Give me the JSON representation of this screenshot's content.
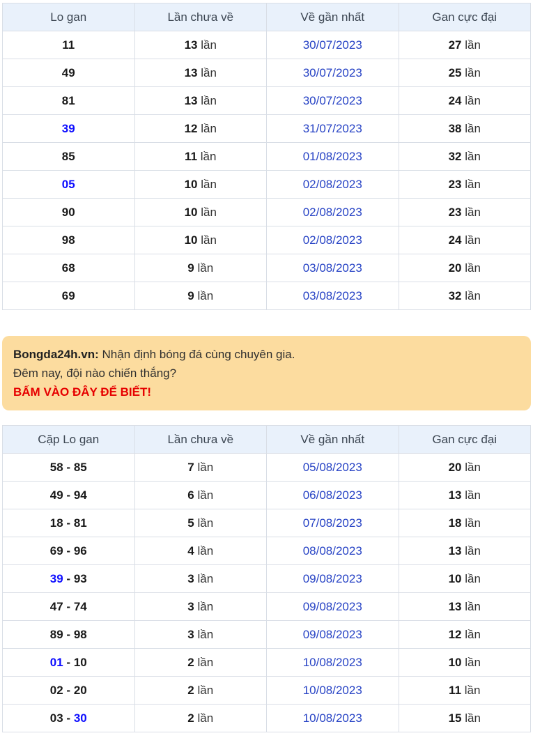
{
  "labels": {
    "unit": "lần",
    "pair_sep": "-"
  },
  "colors": {
    "header_bg": "#e9f1fb",
    "border": "#d9dee6",
    "date_blue": "#2743c5",
    "highlight_blue": "#0d0dff",
    "banner_bg": "#fcdc9f",
    "banner_red": "#e60000"
  },
  "table1": {
    "headers": [
      "Lo gan",
      "Lần chưa về",
      "Về gần nhất",
      "Gan cực đại"
    ],
    "rows": [
      {
        "number": "11",
        "hl": false,
        "times": "13",
        "date": "30/07/2023",
        "max": "27"
      },
      {
        "number": "49",
        "hl": false,
        "times": "13",
        "date": "30/07/2023",
        "max": "25"
      },
      {
        "number": "81",
        "hl": false,
        "times": "13",
        "date": "30/07/2023",
        "max": "24"
      },
      {
        "number": "39",
        "hl": true,
        "times": "12",
        "date": "31/07/2023",
        "max": "38"
      },
      {
        "number": "85",
        "hl": false,
        "times": "11",
        "date": "01/08/2023",
        "max": "32"
      },
      {
        "number": "05",
        "hl": true,
        "times": "10",
        "date": "02/08/2023",
        "max": "23"
      },
      {
        "number": "90",
        "hl": false,
        "times": "10",
        "date": "02/08/2023",
        "max": "23"
      },
      {
        "number": "98",
        "hl": false,
        "times": "10",
        "date": "02/08/2023",
        "max": "24"
      },
      {
        "number": "68",
        "hl": false,
        "times": "9",
        "date": "03/08/2023",
        "max": "20"
      },
      {
        "number": "69",
        "hl": false,
        "times": "9",
        "date": "03/08/2023",
        "max": "32"
      }
    ]
  },
  "banner": {
    "brand": "Bongda24h.vn:",
    "line1": "Nhận định bóng đá cùng chuyên gia.",
    "line2": "Đêm nay, đội nào chiến thắng?",
    "cta": "BẤM VÀO ĐÂY ĐỂ BIẾT!"
  },
  "table2": {
    "headers": [
      "Cặp Lo gan",
      "Lần chưa về",
      "Về gần nhất",
      "Gan cực đại"
    ],
    "rows": [
      {
        "pair1": "58",
        "hl1": false,
        "pair2": "85",
        "hl2": false,
        "times": "7",
        "date": "05/08/2023",
        "max": "20"
      },
      {
        "pair1": "49",
        "hl1": false,
        "pair2": "94",
        "hl2": false,
        "times": "6",
        "date": "06/08/2023",
        "max": "13"
      },
      {
        "pair1": "18",
        "hl1": false,
        "pair2": "81",
        "hl2": false,
        "times": "5",
        "date": "07/08/2023",
        "max": "18"
      },
      {
        "pair1": "69",
        "hl1": false,
        "pair2": "96",
        "hl2": false,
        "times": "4",
        "date": "08/08/2023",
        "max": "13"
      },
      {
        "pair1": "39",
        "hl1": true,
        "pair2": "93",
        "hl2": false,
        "times": "3",
        "date": "09/08/2023",
        "max": "10"
      },
      {
        "pair1": "47",
        "hl1": false,
        "pair2": "74",
        "hl2": false,
        "times": "3",
        "date": "09/08/2023",
        "max": "13"
      },
      {
        "pair1": "89",
        "hl1": false,
        "pair2": "98",
        "hl2": false,
        "times": "3",
        "date": "09/08/2023",
        "max": "12"
      },
      {
        "pair1": "01",
        "hl1": true,
        "pair2": "10",
        "hl2": false,
        "times": "2",
        "date": "10/08/2023",
        "max": "10"
      },
      {
        "pair1": "02",
        "hl1": false,
        "pair2": "20",
        "hl2": false,
        "times": "2",
        "date": "10/08/2023",
        "max": "11"
      },
      {
        "pair1": "03",
        "hl1": false,
        "pair2": "30",
        "hl2": true,
        "times": "2",
        "date": "10/08/2023",
        "max": "15"
      }
    ]
  }
}
